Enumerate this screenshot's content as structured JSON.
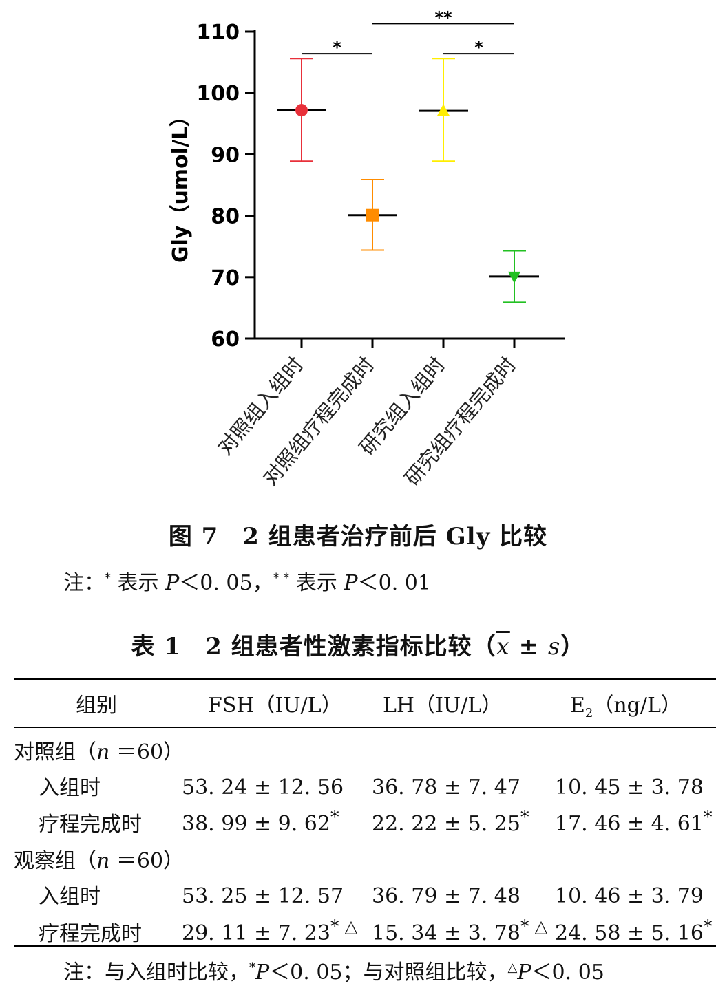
{
  "chart_data": {
    "type": "scatter",
    "ylabel": "Gly（umol/L）",
    "ylim": [
      60,
      110
    ],
    "yticks": [
      60,
      70,
      80,
      90,
      100,
      110
    ],
    "categories": [
      "对照组入组时",
      "对照组疗程完成时",
      "研究组入组时",
      "研究组疗程完成时"
    ],
    "points": [
      {
        "category": "对照组入组时",
        "mean": 97.2,
        "low": 88.9,
        "high": 105.6,
        "color": "#e8303a",
        "marker": "circle"
      },
      {
        "category": "对照组疗程完成时",
        "mean": 80.1,
        "low": 74.4,
        "high": 85.9,
        "color": "#ff8c00",
        "marker": "square"
      },
      {
        "category": "研究组入组时",
        "mean": 97.1,
        "low": 88.9,
        "high": 105.6,
        "color": "#ffee00",
        "marker": "triangle-up"
      },
      {
        "category": "研究组疗程完成时",
        "mean": 70.1,
        "low": 65.9,
        "high": 74.3,
        "color": "#22c022",
        "marker": "triangle-down"
      }
    ],
    "brackets": [
      {
        "from": 0,
        "to": 1,
        "label": "*",
        "y": 106.4
      },
      {
        "from": 1,
        "to": 3,
        "label": "**",
        "y": 111.3
      },
      {
        "from": 2,
        "to": 3,
        "label": "*",
        "y": 106.4
      }
    ]
  },
  "figure": {
    "caption": "图 7　2 组患者治疗前后 Gly 比较",
    "note_prefix": "注：",
    "note_star1": "*",
    "note_text1": " 表示 ",
    "note_p1": "P",
    "note_val1": "＜0. 05，",
    "note_star2": "* *",
    "note_text2": " 表示 ",
    "note_p2": "P",
    "note_val2": "＜0. 01"
  },
  "table": {
    "caption_prefix": "表 1　2 组患者性激素指标比较（",
    "caption_x": "x",
    "caption_pm": " ± ",
    "caption_s": "s",
    "caption_suffix": "）",
    "headers": {
      "group": "组别",
      "fsh": "FSH（IU/L）",
      "lh": "LH（IU/L）",
      "e2_main": "E",
      "e2_sub": "2",
      "e2_unit": "（ng/L）"
    },
    "groups": [
      {
        "label": "对照组（",
        "n": "n",
        "count": " ＝60）",
        "rows": [
          {
            "name": "入组时",
            "fsh": "53. 24 ± 12. 56",
            "fsh_sup": "",
            "lh": "36. 78 ± 7. 47",
            "lh_sup": "",
            "e2": "10. 45 ± 3. 78",
            "e2_sup": ""
          },
          {
            "name": "疗程完成时",
            "fsh": "38. 99 ± 9. 62",
            "fsh_sup": "*",
            "lh": "22. 22 ± 5. 25",
            "lh_sup": "*",
            "e2": "17. 46 ± 4. 61",
            "e2_sup": "*"
          }
        ]
      },
      {
        "label": "观察组（",
        "n": "n",
        "count": " ＝60）",
        "rows": [
          {
            "name": "入组时",
            "fsh": "53. 25 ± 12. 57",
            "fsh_sup": "",
            "lh": "36. 79 ± 7. 48",
            "lh_sup": "",
            "e2": "10. 46 ± 3. 79",
            "e2_sup": ""
          },
          {
            "name": "疗程完成时",
            "fsh": "29. 11 ± 7. 23",
            "fsh_sup": "* △",
            "lh": "15. 34 ± 3. 78",
            "lh_sup": "* △",
            "e2": "24. 58 ± 5. 16",
            "e2_sup": "* △"
          }
        ]
      }
    ],
    "note_prefix": "注：与入组时比较，",
    "note_star": "*",
    "note_p1": "P",
    "note_val1": "＜0. 05；与对照组比较，",
    "note_tri": "△",
    "note_p2": "P",
    "note_val2": "＜0. 05"
  }
}
